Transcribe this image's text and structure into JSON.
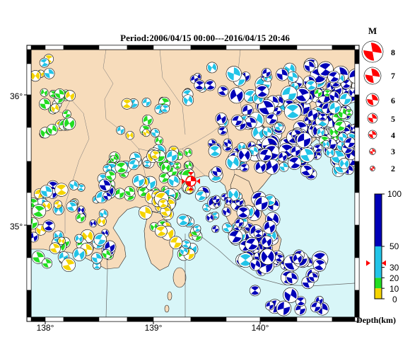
{
  "title": "Period:2006/04/15 00:00---2016/04/15 20:46",
  "map": {
    "lon_ticks": [
      "138°",
      "139°",
      "140°"
    ],
    "lat_ticks": [
      "36°",
      "35°"
    ],
    "lon_range": [
      137.9,
      140.9
    ],
    "lat_range": [
      34.4,
      36.35
    ],
    "colors": {
      "land": "#f7dcbb",
      "sea": "#d8f6f8",
      "border": "#000000"
    },
    "epicenter": {
      "lon": 139.38,
      "lat": 35.37,
      "color": "#ff0000",
      "icon": "red-crosshair-mechanism-icon"
    }
  },
  "magnitude_legend": {
    "label": "M",
    "items": [
      "8",
      "7",
      "6",
      "5",
      "4",
      "3",
      "2"
    ]
  },
  "depth_scale": {
    "label": "Depth(km)",
    "ticks": [
      "100",
      "50",
      "30",
      "20",
      "10",
      "0"
    ],
    "marker_value": 34,
    "bands": [
      {
        "from": 0,
        "to": 10,
        "color": "#f5d400"
      },
      {
        "from": 10,
        "to": 20,
        "color": "#22dd22"
      },
      {
        "from": 20,
        "to": 50,
        "color": "#22c4e8"
      },
      {
        "from": 50,
        "to": 100,
        "color": "#0000b8"
      }
    ]
  }
}
